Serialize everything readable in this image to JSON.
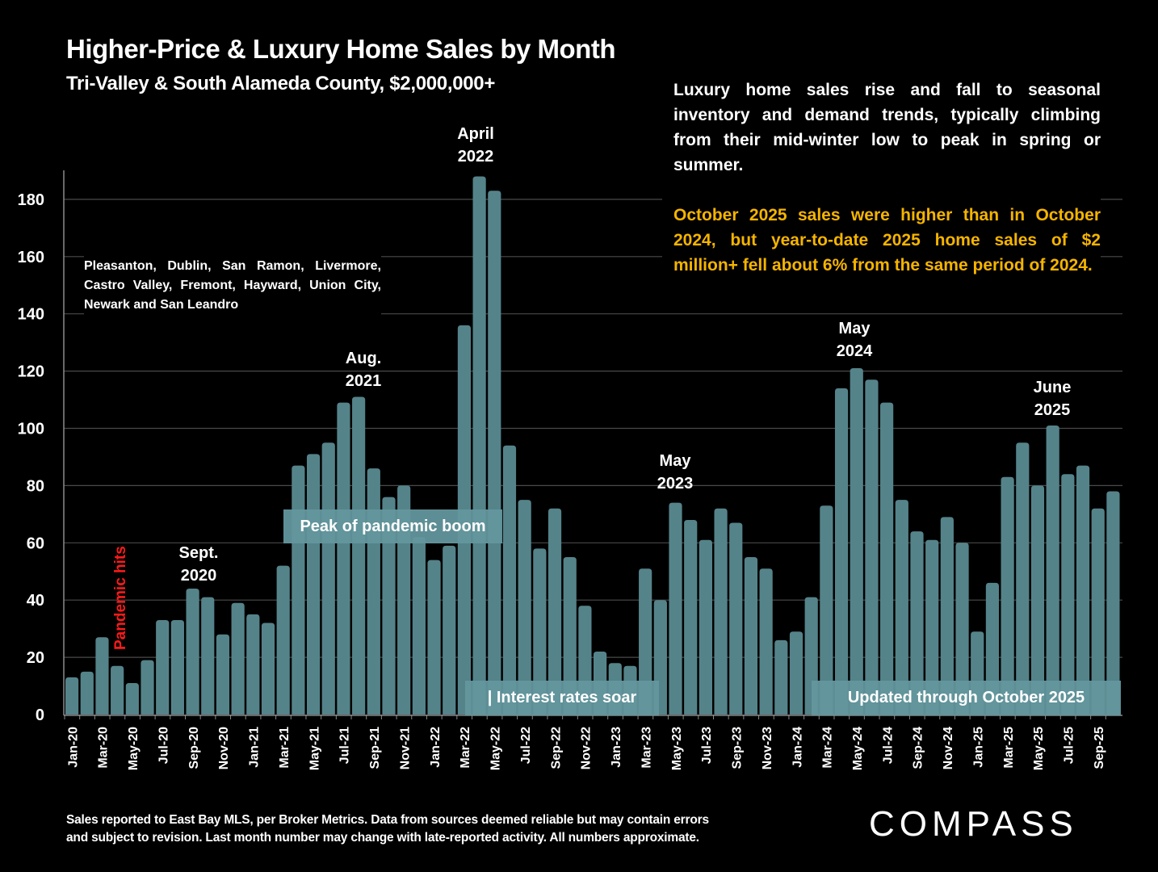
{
  "header": {
    "title": "Higher-Price & Luxury Home Sales by Month",
    "subtitle": "Tri-Valley & South Alameda County, $2,000,000+"
  },
  "cities_note": "Pleasanton, Dublin, San Ramon, Livermore, Castro Valley, Fremont, Hayward, Union City, Newark and San Leandro",
  "description": {
    "paragraph1": "Luxury home sales rise and fall to seasonal inventory and demand trends, typically climbing from their mid-winter low to peak in spring or summer.",
    "paragraph2": "October 2025 sales were higher than in October 2024, but year-to-date 2025 home sales of $2 million+ fell about 6% from the same period of 2024.",
    "highlight_color": "#f5b400"
  },
  "annotations": {
    "pandemic_hits": "Pandemic hits",
    "sept_2020": [
      "Sept.",
      "2020"
    ],
    "aug_2021": [
      "Aug.",
      "2021"
    ],
    "april_2022": [
      "April",
      "2022"
    ],
    "may_2023": [
      "May",
      "2023"
    ],
    "may_2024": [
      "May",
      "2024"
    ],
    "june_2025": [
      "June",
      "2025"
    ],
    "peak_box": "Peak of pandemic boom",
    "rates_box": "| Interest rates soar",
    "updated_box": "Updated through October 2025"
  },
  "footer": {
    "line1": "Sales reported to East Bay MLS, per Broker Metrics. Data from sources deemed reliable but may contain errors",
    "line2": "and subject to revision. Last month number may change with late-reported activity. All numbers approximate."
  },
  "logo": "COMPASS",
  "colors": {
    "bar": "#55838a",
    "annotation_box": "#63969d",
    "pandemic_text": "#ff1a1a"
  },
  "chart_data": {
    "type": "bar",
    "title": "Higher-Price & Luxury Home Sales by Month",
    "xlabel": "",
    "ylabel": "",
    "ylim": [
      0,
      190
    ],
    "yticks": [
      0,
      20,
      40,
      60,
      80,
      100,
      120,
      140,
      160,
      180
    ],
    "grid": true,
    "categories": [
      "Jan-20",
      "Feb-20",
      "Mar-20",
      "Apr-20",
      "May-20",
      "Jun-20",
      "Jul-20",
      "Aug-20",
      "Sep-20",
      "Oct-20",
      "Nov-20",
      "Dec-20",
      "Jan-21",
      "Feb-21",
      "Mar-21",
      "Apr-21",
      "May-21",
      "Jun-21",
      "Jul-21",
      "Aug-21",
      "Sep-21",
      "Oct-21",
      "Nov-21",
      "Dec-21",
      "Jan-22",
      "Feb-22",
      "Mar-22",
      "Apr-22",
      "May-22",
      "Jun-22",
      "Jul-22",
      "Aug-22",
      "Sep-22",
      "Oct-22",
      "Nov-22",
      "Dec-22",
      "Jan-23",
      "Feb-23",
      "Mar-23",
      "Apr-23",
      "May-23",
      "Jun-23",
      "Jul-23",
      "Aug-23",
      "Sep-23",
      "Oct-23",
      "Nov-23",
      "Dec-23",
      "Jan-24",
      "Feb-24",
      "Mar-24",
      "Apr-24",
      "May-24",
      "Jun-24",
      "Jul-24",
      "Aug-24",
      "Sep-24",
      "Oct-24",
      "Nov-24",
      "Dec-24",
      "Jan-25",
      "Feb-25",
      "Mar-25",
      "Apr-25",
      "May-25",
      "Jun-25",
      "Jul-25",
      "Aug-25",
      "Sep-25",
      "Oct-25"
    ],
    "values": [
      13,
      15,
      27,
      17,
      11,
      19,
      33,
      33,
      44,
      41,
      28,
      39,
      35,
      32,
      52,
      87,
      91,
      95,
      109,
      111,
      86,
      76,
      80,
      62,
      54,
      59,
      136,
      188,
      183,
      94,
      75,
      58,
      72,
      55,
      38,
      22,
      18,
      17,
      51,
      40,
      74,
      68,
      61,
      72,
      67,
      55,
      51,
      26,
      29,
      41,
      73,
      114,
      121,
      117,
      109,
      75,
      64,
      61,
      69,
      60,
      29,
      46,
      83,
      95,
      80,
      101,
      84,
      87,
      72,
      78
    ],
    "tick_labels_shown_every": 2
  }
}
